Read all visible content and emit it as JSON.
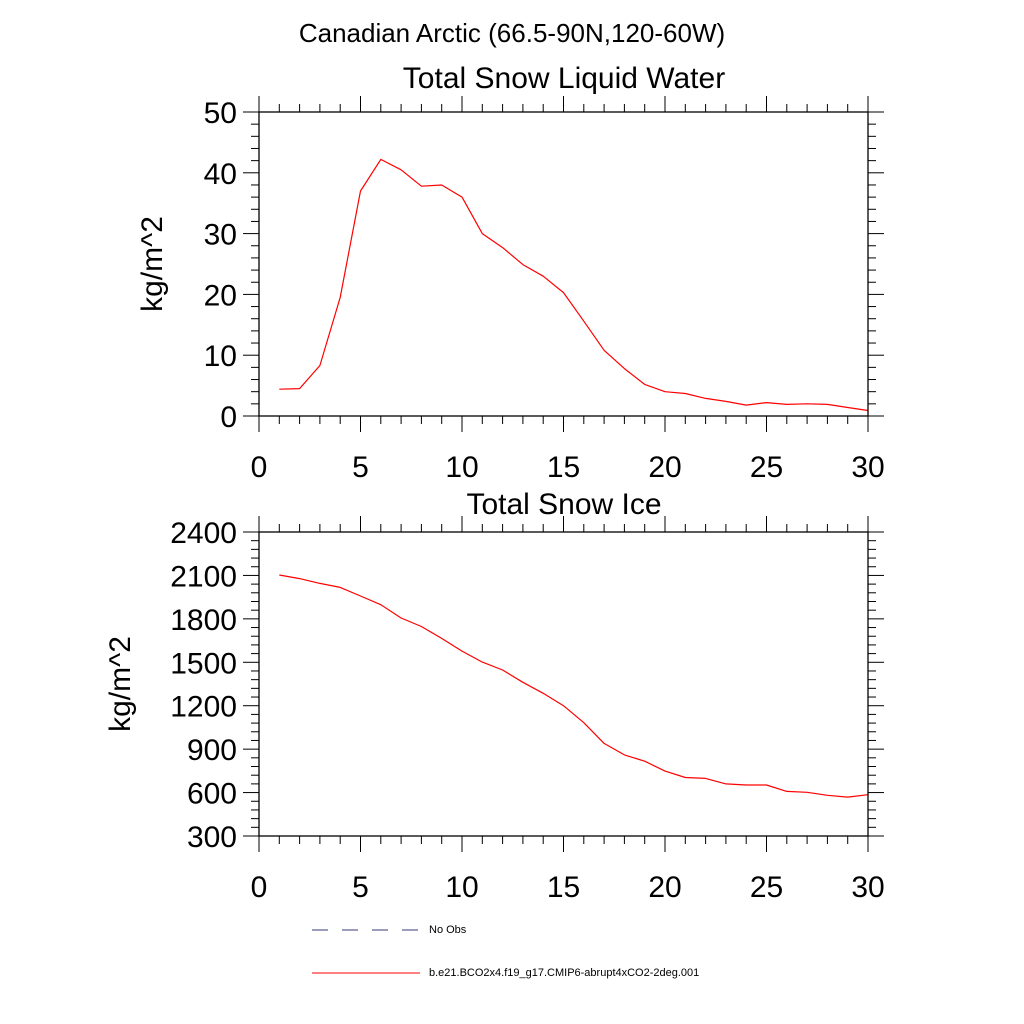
{
  "figure": {
    "suptitle": "Canadian Arctic (66.5-90N,120-60W)"
  },
  "chart_data": [
    {
      "type": "line",
      "title": "Total Snow Liquid Water",
      "xlabel": "",
      "ylabel": "kg/m^2",
      "xlim": [
        0,
        30
      ],
      "ylim": [
        0,
        50
      ],
      "xticks": [
        0,
        5,
        10,
        15,
        20,
        25,
        30
      ],
      "yticks": [
        0,
        10,
        20,
        30,
        40,
        50
      ],
      "xtick_labels": [
        "0",
        "5",
        "10",
        "15",
        "20",
        "25",
        "30"
      ],
      "ytick_labels": [
        "0",
        "10",
        "20",
        "30",
        "40",
        "50"
      ],
      "grid": false,
      "series": [
        {
          "name": "b.e21.BCO2x4.f19_g17.CMIP6-abrupt4xCO2-2deg.001",
          "color": "#ff0000",
          "x": [
            1,
            2,
            3,
            4,
            5,
            6,
            7,
            8,
            9,
            10,
            11,
            12,
            13,
            14,
            15,
            16,
            17,
            18,
            19,
            20,
            21,
            22,
            23,
            24,
            25,
            26,
            27,
            28,
            29,
            30
          ],
          "values": [
            4.4,
            4.5,
            8.3,
            19.5,
            37.0,
            42.2,
            40.5,
            37.8,
            38.0,
            36.0,
            30.0,
            27.7,
            24.9,
            23.0,
            20.3,
            15.6,
            10.8,
            7.8,
            5.2,
            4.0,
            3.7,
            2.9,
            2.4,
            1.8,
            2.2,
            1.9,
            2.0,
            1.9,
            1.4,
            0.9
          ]
        }
      ]
    },
    {
      "type": "line",
      "title": "Total Snow Ice",
      "xlabel": "",
      "ylabel": "kg/m^2",
      "xlim": [
        0,
        30
      ],
      "ylim": [
        300,
        2400
      ],
      "xticks": [
        0,
        5,
        10,
        15,
        20,
        25,
        30
      ],
      "yticks": [
        300,
        600,
        900,
        1200,
        1500,
        1800,
        2100,
        2400
      ],
      "xtick_labels": [
        "0",
        "5",
        "10",
        "15",
        "20",
        "25",
        "30"
      ],
      "ytick_labels": [
        "300",
        "600",
        "900",
        "1200",
        "1500",
        "1800",
        "2100",
        "2400"
      ],
      "grid": false,
      "series": [
        {
          "name": "b.e21.BCO2x4.f19_g17.CMIP6-abrupt4xCO2-2deg.001",
          "color": "#ff0000",
          "x": [
            1,
            2,
            3,
            4,
            5,
            6,
            7,
            8,
            9,
            10,
            11,
            12,
            13,
            14,
            15,
            16,
            17,
            18,
            19,
            20,
            21,
            22,
            23,
            24,
            25,
            26,
            27,
            28,
            29,
            30
          ],
          "values": [
            2103,
            2078,
            2045,
            2017,
            1958,
            1898,
            1806,
            1747,
            1665,
            1577,
            1501,
            1447,
            1362,
            1286,
            1200,
            1083,
            940,
            860,
            817,
            748,
            704,
            698,
            660,
            652,
            652,
            608,
            602,
            581,
            569,
            585
          ]
        }
      ]
    }
  ],
  "legend": {
    "placement": "bottom",
    "entries": [
      {
        "label": "No Obs",
        "color": "#3a3a7a",
        "dash": "dashed"
      },
      {
        "label": "b.e21.BCO2x4.f19_g17.CMIP6-abrupt4xCO2-2deg.001",
        "color": "#ff0000",
        "dash": "solid"
      }
    ]
  }
}
